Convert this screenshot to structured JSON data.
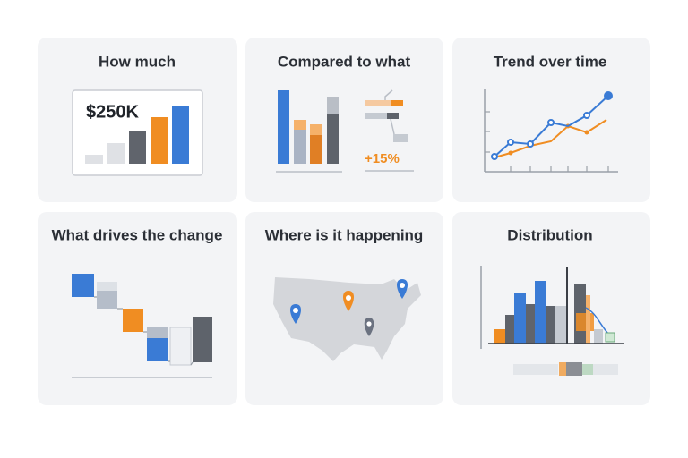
{
  "cards": [
    {
      "title": "How much",
      "label": "$250K"
    },
    {
      "title": "Compared to what",
      "label": "+15%"
    },
    {
      "title": "Trend over time"
    },
    {
      "title": "What drives the change"
    },
    {
      "title": "Where is it happening"
    },
    {
      "title": "Distribution"
    }
  ]
}
